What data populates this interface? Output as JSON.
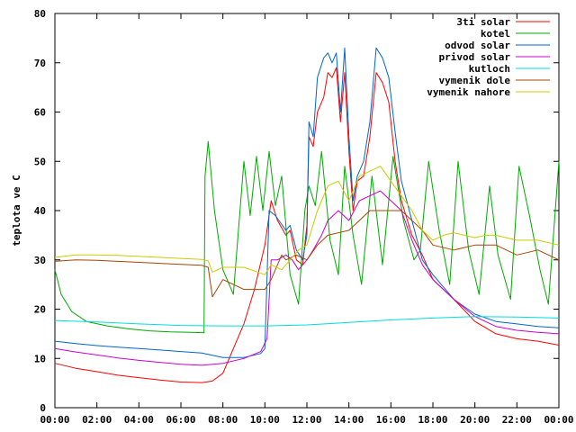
{
  "chart_data": {
    "type": "line",
    "title": "",
    "xlabel": "",
    "ylabel": "teplota ve C",
    "xlim": [
      0,
      24
    ],
    "ylim": [
      0,
      80
    ],
    "x_ticks": [
      0,
      2,
      4,
      6,
      8,
      10,
      12,
      14,
      16,
      18,
      20,
      22,
      24
    ],
    "x_tick_labels": [
      "00:00",
      "02:00",
      "04:00",
      "06:00",
      "08:00",
      "10:00",
      "12:00",
      "14:00",
      "16:00",
      "18:00",
      "20:00",
      "22:00",
      "00:00"
    ],
    "y_ticks": [
      0,
      10,
      20,
      30,
      40,
      50,
      60,
      70,
      80
    ],
    "y_tick_labels": [
      "0",
      "10",
      "20",
      "30",
      "40",
      "50",
      "60",
      "70",
      "80"
    ],
    "grid": false,
    "legend_position": "top-right",
    "series": [
      {
        "name": "3ti solar",
        "color": "#ff0000",
        "points": [
          [
            0,
            9
          ],
          [
            1,
            8
          ],
          [
            2,
            7.3
          ],
          [
            3,
            6.6
          ],
          [
            4,
            6.1
          ],
          [
            5,
            5.6
          ],
          [
            6,
            5.2
          ],
          [
            7,
            5.1
          ],
          [
            7.5,
            5.4
          ],
          [
            8,
            7
          ],
          [
            8.5,
            12
          ],
          [
            9,
            17
          ],
          [
            9.5,
            24
          ],
          [
            10,
            33
          ],
          [
            10.3,
            42
          ],
          [
            10.6,
            38
          ],
          [
            11,
            35
          ],
          [
            11.2,
            36
          ],
          [
            11.5,
            30
          ],
          [
            11.8,
            29
          ],
          [
            12,
            37
          ],
          [
            12.1,
            55
          ],
          [
            12.3,
            53
          ],
          [
            12.5,
            60
          ],
          [
            12.8,
            63
          ],
          [
            13,
            68
          ],
          [
            13.2,
            67
          ],
          [
            13.4,
            69
          ],
          [
            13.6,
            58
          ],
          [
            13.8,
            68
          ],
          [
            14,
            52
          ],
          [
            14.2,
            40
          ],
          [
            14.4,
            46
          ],
          [
            14.7,
            47
          ],
          [
            15,
            55
          ],
          [
            15.3,
            68
          ],
          [
            15.6,
            66
          ],
          [
            15.9,
            62
          ],
          [
            16.2,
            50
          ],
          [
            16.5,
            42
          ],
          [
            17,
            35
          ],
          [
            17.5,
            31
          ],
          [
            18,
            26
          ],
          [
            19,
            22
          ],
          [
            20,
            17.5
          ],
          [
            21,
            15
          ],
          [
            22,
            14
          ],
          [
            23,
            13.5
          ],
          [
            24,
            12.7
          ]
        ]
      },
      {
        "name": "kotel",
        "color": "#00aa00",
        "points": [
          [
            0,
            28
          ],
          [
            0.3,
            23
          ],
          [
            0.8,
            19.5
          ],
          [
            1.5,
            17.5
          ],
          [
            2.5,
            16.6
          ],
          [
            3.5,
            16
          ],
          [
            4.5,
            15.6
          ],
          [
            5.5,
            15.4
          ],
          [
            6.5,
            15.3
          ],
          [
            7.1,
            15.2
          ],
          [
            7.15,
            47
          ],
          [
            7.3,
            54
          ],
          [
            7.6,
            40
          ],
          [
            8,
            28
          ],
          [
            8.5,
            23
          ],
          [
            9,
            50
          ],
          [
            9.3,
            39
          ],
          [
            9.6,
            51
          ],
          [
            9.9,
            40
          ],
          [
            10.2,
            52
          ],
          [
            10.5,
            41
          ],
          [
            10.8,
            47
          ],
          [
            11.2,
            27
          ],
          [
            11.6,
            21
          ],
          [
            11.9,
            40
          ],
          [
            12.1,
            45
          ],
          [
            12.4,
            41
          ],
          [
            12.7,
            52
          ],
          [
            13.1,
            34
          ],
          [
            13.5,
            27
          ],
          [
            13.8,
            49
          ],
          [
            14.2,
            35
          ],
          [
            14.6,
            25
          ],
          [
            15.1,
            47
          ],
          [
            15.6,
            29
          ],
          [
            16.1,
            51
          ],
          [
            16.6,
            38
          ],
          [
            17.1,
            30
          ],
          [
            17.4,
            32
          ],
          [
            17.8,
            50
          ],
          [
            18.3,
            36
          ],
          [
            18.8,
            25
          ],
          [
            19.2,
            50
          ],
          [
            19.7,
            32
          ],
          [
            20.2,
            23
          ],
          [
            20.7,
            45
          ],
          [
            21.1,
            31
          ],
          [
            21.7,
            22
          ],
          [
            22.1,
            49
          ],
          [
            22.6,
            39
          ],
          [
            23.1,
            28
          ],
          [
            23.5,
            21
          ],
          [
            24,
            50
          ]
        ]
      },
      {
        "name": "odvod solar",
        "color": "#0066cc",
        "points": [
          [
            0,
            13.5
          ],
          [
            1,
            13
          ],
          [
            2,
            12.6
          ],
          [
            3,
            12.3
          ],
          [
            4,
            12
          ],
          [
            5,
            11.7
          ],
          [
            6,
            11.4
          ],
          [
            7,
            11.1
          ],
          [
            8,
            10.2
          ],
          [
            9,
            10.2
          ],
          [
            9.8,
            11
          ],
          [
            10,
            12
          ],
          [
            10.2,
            40
          ],
          [
            10.5,
            39
          ],
          [
            11,
            36
          ],
          [
            11.2,
            37
          ],
          [
            11.5,
            32
          ],
          [
            11.8,
            30
          ],
          [
            12,
            35
          ],
          [
            12.1,
            58
          ],
          [
            12.3,
            55
          ],
          [
            12.5,
            67
          ],
          [
            12.8,
            71
          ],
          [
            13,
            72
          ],
          [
            13.2,
            70
          ],
          [
            13.4,
            72
          ],
          [
            13.6,
            60
          ],
          [
            13.8,
            73
          ],
          [
            14,
            55
          ],
          [
            14.2,
            42
          ],
          [
            14.4,
            47
          ],
          [
            14.7,
            50
          ],
          [
            15,
            58
          ],
          [
            15.3,
            73
          ],
          [
            15.6,
            71
          ],
          [
            15.9,
            67
          ],
          [
            16.2,
            56
          ],
          [
            16.5,
            46
          ],
          [
            17,
            38
          ],
          [
            17.5,
            30
          ],
          [
            18,
            27
          ],
          [
            19,
            22
          ],
          [
            20,
            19
          ],
          [
            21,
            17.5
          ],
          [
            22,
            17
          ],
          [
            23,
            16.5
          ],
          [
            24,
            16.2
          ]
        ]
      },
      {
        "name": "privod solar",
        "color": "#cc00cc",
        "points": [
          [
            0,
            12
          ],
          [
            1,
            11.3
          ],
          [
            2,
            10.7
          ],
          [
            3,
            10.1
          ],
          [
            4,
            9.6
          ],
          [
            5,
            9.2
          ],
          [
            6,
            8.8
          ],
          [
            7,
            8.6
          ],
          [
            8,
            9
          ],
          [
            9,
            10
          ],
          [
            9.8,
            11.4
          ],
          [
            10.1,
            14
          ],
          [
            10.3,
            30
          ],
          [
            10.6,
            30
          ],
          [
            11,
            31
          ],
          [
            11.3,
            30
          ],
          [
            11.6,
            28
          ],
          [
            12,
            30
          ],
          [
            12.3,
            32
          ],
          [
            12.7,
            35
          ],
          [
            13,
            38
          ],
          [
            13.5,
            40
          ],
          [
            14,
            38
          ],
          [
            14.5,
            42
          ],
          [
            15,
            43
          ],
          [
            15.5,
            44
          ],
          [
            16,
            42
          ],
          [
            16.5,
            40
          ],
          [
            17,
            34
          ],
          [
            17.5,
            29
          ],
          [
            18,
            26
          ],
          [
            19,
            22
          ],
          [
            20,
            18.5
          ],
          [
            21,
            16.5
          ],
          [
            22,
            15.7
          ],
          [
            23,
            15.3
          ],
          [
            24,
            15
          ]
        ]
      },
      {
        "name": "kutloch",
        "color": "#00dddd",
        "points": [
          [
            0,
            17.7
          ],
          [
            2,
            17.4
          ],
          [
            4,
            17
          ],
          [
            6,
            16.7
          ],
          [
            8,
            16.6
          ],
          [
            10,
            16.6
          ],
          [
            12,
            16.8
          ],
          [
            14,
            17.3
          ],
          [
            16,
            17.8
          ],
          [
            18,
            18.2
          ],
          [
            20,
            18.5
          ],
          [
            22,
            18.4
          ],
          [
            24,
            18.2
          ]
        ]
      },
      {
        "name": "vymenik dole",
        "color": "#aa4400",
        "points": [
          [
            0,
            29.7
          ],
          [
            1,
            30
          ],
          [
            2,
            29.9
          ],
          [
            3,
            29.7
          ],
          [
            4,
            29.5
          ],
          [
            5,
            29.3
          ],
          [
            6,
            29.1
          ],
          [
            7,
            28.9
          ],
          [
            7.3,
            28.5
          ],
          [
            7.5,
            22.5
          ],
          [
            8,
            26
          ],
          [
            9,
            24
          ],
          [
            10,
            24
          ],
          [
            10.3,
            26
          ],
          [
            10.8,
            31
          ],
          [
            11,
            30
          ],
          [
            11.5,
            31
          ],
          [
            12,
            30
          ],
          [
            12.5,
            33
          ],
          [
            13,
            35
          ],
          [
            14,
            36
          ],
          [
            14.5,
            38
          ],
          [
            15,
            40
          ],
          [
            16,
            40
          ],
          [
            16.5,
            40
          ],
          [
            17,
            38
          ],
          [
            17.5,
            36
          ],
          [
            18,
            33
          ],
          [
            19,
            32
          ],
          [
            20,
            33
          ],
          [
            21,
            33
          ],
          [
            22,
            31
          ],
          [
            23,
            32
          ],
          [
            24,
            30
          ]
        ]
      },
      {
        "name": "vymenik nahore",
        "color": "#cccc00",
        "points": [
          [
            0,
            30.5
          ],
          [
            1,
            31
          ],
          [
            2,
            31
          ],
          [
            3,
            30.9
          ],
          [
            4,
            30.7
          ],
          [
            5,
            30.5
          ],
          [
            6,
            30.3
          ],
          [
            7,
            30.1
          ],
          [
            7.3,
            29.8
          ],
          [
            7.5,
            27.5
          ],
          [
            8,
            28.5
          ],
          [
            9,
            28.5
          ],
          [
            10,
            27
          ],
          [
            10.3,
            29
          ],
          [
            10.8,
            28
          ],
          [
            11.2,
            30
          ],
          [
            11.6,
            32
          ],
          [
            12,
            33
          ],
          [
            12.5,
            40
          ],
          [
            13,
            45
          ],
          [
            13.5,
            46
          ],
          [
            14,
            42
          ],
          [
            14.5,
            47
          ],
          [
            15,
            48
          ],
          [
            15.5,
            49
          ],
          [
            16,
            46
          ],
          [
            16.5,
            43
          ],
          [
            17,
            40
          ],
          [
            17.5,
            36
          ],
          [
            18,
            34
          ],
          [
            18.5,
            35
          ],
          [
            19,
            35.5
          ],
          [
            20,
            34.5
          ],
          [
            20.5,
            35
          ],
          [
            21,
            35
          ],
          [
            22,
            34
          ],
          [
            23,
            34
          ],
          [
            24,
            33
          ]
        ]
      }
    ]
  }
}
